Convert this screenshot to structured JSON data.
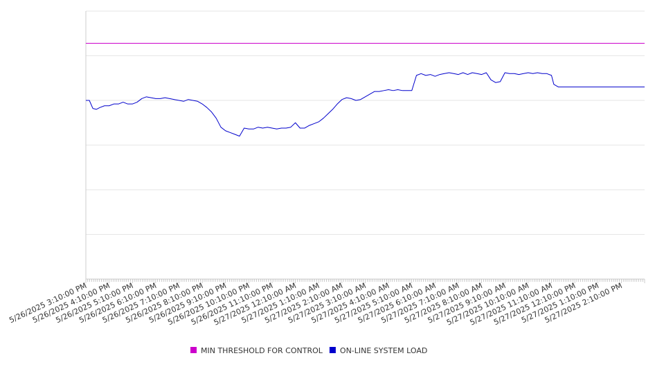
{
  "chart_data": {
    "type": "line",
    "title": "",
    "xlabel": "",
    "ylabel": "",
    "grid": true,
    "legend_position": "bottom",
    "ylim": [
      0,
      6
    ],
    "x_tick_labels": [
      "5/26/2025 3:10:00 PM",
      "5/26/2025 4:10:00 PM",
      "5/26/2025 5:10:00 PM",
      "5/26/2025 6:10:00 PM",
      "5/26/2025 7:10:00 PM",
      "5/26/2025 8:10:00 PM",
      "5/26/2025 9:10:00 PM",
      "5/26/2025 10:10:00 PM",
      "5/26/2025 11:10:00 PM",
      "5/27/2025 12:10:00 AM",
      "5/27/2025 1:10:00 AM",
      "5/27/2025 2:10:00 AM",
      "5/27/2025 3:10:00 AM",
      "5/27/2025 4:10:00 AM",
      "5/27/2025 5:10:00 AM",
      "5/27/2025 6:10:00 AM",
      "5/27/2025 7:10:00 AM",
      "5/27/2025 8:10:00 AM",
      "5/27/2025 9:10:00 AM",
      "5/27/2025 10:10:00 AM",
      "5/27/2025 11:10:00 AM",
      "5/27/2025 12:10:00 PM",
      "5/27/2025 1:10:00 PM",
      "5/27/2025 2:10:00 PM"
    ],
    "series": [
      {
        "name": "MIN THRESHOLD FOR CONTROL",
        "color": "#cc00cc",
        "x": [
          0,
          24
        ],
        "y": [
          5.28,
          5.28
        ]
      },
      {
        "name": "ON-LINE SYSTEM LOAD",
        "color": "#0000cc",
        "x": [
          0,
          0.15,
          0.3,
          0.45,
          0.6,
          0.8,
          1.0,
          1.2,
          1.4,
          1.6,
          1.8,
          2.0,
          2.2,
          2.4,
          2.6,
          2.8,
          3.0,
          3.2,
          3.4,
          3.6,
          3.8,
          4.0,
          4.2,
          4.4,
          4.6,
          4.8,
          5.0,
          5.2,
          5.4,
          5.6,
          5.8,
          6.0,
          6.2,
          6.4,
          6.6,
          6.8,
          7.0,
          7.2,
          7.4,
          7.6,
          7.8,
          8.0,
          8.2,
          8.4,
          8.6,
          8.8,
          9.0,
          9.2,
          9.4,
          9.6,
          9.8,
          10.0,
          10.2,
          10.4,
          10.6,
          10.8,
          11.0,
          11.2,
          11.4,
          11.6,
          11.8,
          12.0,
          12.2,
          12.4,
          12.6,
          12.8,
          13.0,
          13.2,
          13.4,
          13.6,
          13.8,
          14.0,
          14.2,
          14.4,
          14.6,
          14.8,
          15.0,
          15.2,
          15.4,
          15.6,
          15.8,
          16.0,
          16.2,
          16.4,
          16.6,
          16.8,
          17.0,
          17.2,
          17.4,
          17.6,
          17.8,
          18.0,
          18.2,
          18.4,
          18.6,
          18.8,
          19.0,
          19.2,
          19.4,
          19.6,
          19.8,
          20.0,
          20.1,
          20.3,
          20.6,
          20.9,
          21.2,
          21.5,
          21.8,
          22.0,
          22.3,
          22.6,
          22.9,
          23.2,
          23.5,
          23.6,
          23.8,
          24.0
        ],
        "y": [
          4.0,
          4.0,
          3.82,
          3.8,
          3.84,
          3.88,
          3.88,
          3.92,
          3.92,
          3.96,
          3.92,
          3.92,
          3.96,
          4.04,
          4.08,
          4.06,
          4.04,
          4.04,
          4.06,
          4.04,
          4.02,
          4.0,
          3.98,
          4.02,
          4.0,
          3.98,
          3.92,
          3.84,
          3.74,
          3.6,
          3.4,
          3.32,
          3.28,
          3.24,
          3.2,
          3.38,
          3.36,
          3.36,
          3.4,
          3.38,
          3.4,
          3.38,
          3.36,
          3.38,
          3.38,
          3.4,
          3.5,
          3.38,
          3.38,
          3.44,
          3.48,
          3.52,
          3.6,
          3.7,
          3.8,
          3.92,
          4.02,
          4.06,
          4.04,
          4.0,
          4.02,
          4.08,
          4.14,
          4.2,
          4.2,
          4.22,
          4.24,
          4.22,
          4.24,
          4.22,
          4.22,
          4.22,
          4.56,
          4.6,
          4.56,
          4.58,
          4.54,
          4.58,
          4.6,
          4.62,
          4.6,
          4.58,
          4.62,
          4.58,
          4.62,
          4.6,
          4.58,
          4.62,
          4.46,
          4.4,
          4.42,
          4.62,
          4.6,
          4.6,
          4.58,
          4.6,
          4.62,
          4.6,
          4.62,
          4.6,
          4.6,
          4.56,
          4.36,
          4.3,
          4.3,
          4.3,
          4.3,
          4.3,
          4.3,
          4.3,
          4.3,
          4.3,
          4.3,
          4.3,
          4.3,
          4.3,
          4.3,
          4.3
        ]
      }
    ]
  }
}
